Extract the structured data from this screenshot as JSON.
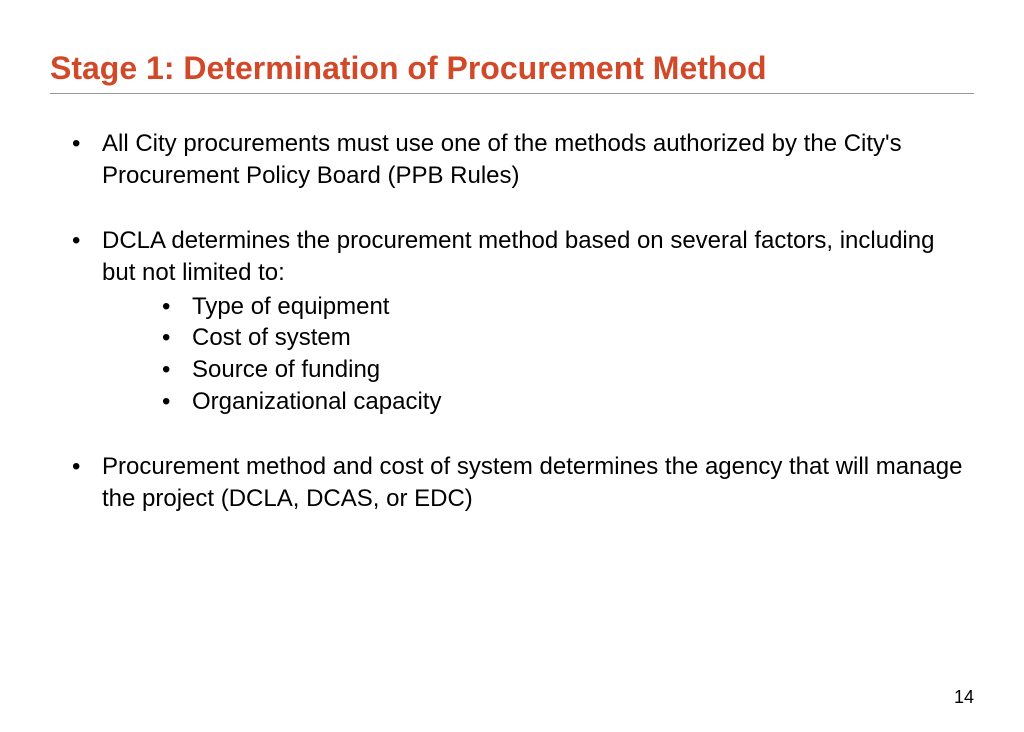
{
  "title": "Stage 1: Determination of Procurement Method",
  "title_color": "#d2492a",
  "text_color": "#000000",
  "bullets": [
    {
      "text": "All City procurements must use one of the methods authorized by the City's Procurement Policy Board (PPB Rules)"
    },
    {
      "text": "DCLA determines the procurement method based on several factors, including but not limited to:",
      "sub": [
        "Type of equipment",
        "Cost of system",
        "Source of funding",
        "Organizational capacity"
      ]
    },
    {
      "text": "Procurement method and cost of system determines the agency that will manage the project (DCLA, DCAS, or EDC)"
    }
  ],
  "page_number": "14"
}
